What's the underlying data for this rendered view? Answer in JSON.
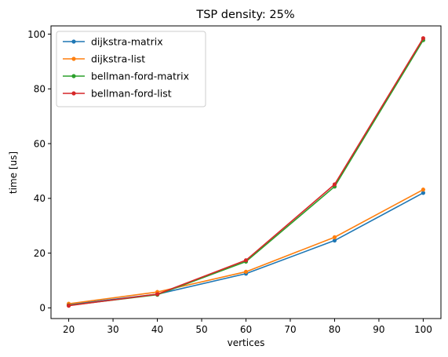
{
  "chart_data": {
    "type": "line",
    "title": "TSP density: 25%",
    "xlabel": "vertices",
    "ylabel": "time [us]",
    "x": [
      20,
      40,
      60,
      80,
      100
    ],
    "xlim": [
      16,
      104
    ],
    "ylim": [
      -3.9,
      103
    ],
    "xticks": [
      20,
      30,
      40,
      50,
      60,
      70,
      80,
      90,
      100
    ],
    "yticks": [
      0,
      20,
      40,
      60,
      80,
      100
    ],
    "grid": false,
    "legend_position": "top-left",
    "series": [
      {
        "name": "dijkstra-matrix",
        "color": "#1f77b4",
        "values": [
          1.2,
          5.0,
          12.5,
          24.6,
          42.0
        ]
      },
      {
        "name": "dijkstra-list",
        "color": "#ff7f0e",
        "values": [
          1.5,
          5.8,
          13.2,
          25.8,
          43.2
        ]
      },
      {
        "name": "bellman-ford-matrix",
        "color": "#2ca02c",
        "values": [
          0.9,
          4.8,
          16.9,
          44.3,
          97.8
        ]
      },
      {
        "name": "bellman-ford-list",
        "color": "#d62728",
        "values": [
          0.8,
          5.0,
          17.4,
          45.1,
          98.5
        ]
      }
    ]
  }
}
